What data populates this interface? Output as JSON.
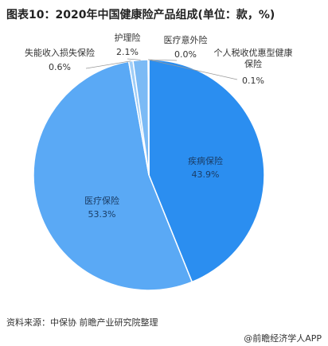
{
  "chart_data": {
    "type": "pie",
    "title": "图表10：2020年中国健康险产品组成(单位：款，%)",
    "categories": [
      "疾病保险",
      "医疗保险",
      "失能收入损失保险",
      "护理险",
      "医疗意外险",
      "个人税收优惠型健康保险"
    ],
    "values": [
      43.9,
      53.3,
      0.6,
      2.1,
      0.0,
      0.1
    ],
    "value_labels": [
      "43.9%",
      "53.3%",
      "0.6%",
      "2.1%",
      "0.0%",
      "0.1%"
    ],
    "colors": [
      "#2b8ef0",
      "#5aa9f5",
      "#9fcdf7",
      "#7bbaf5",
      "#cfe5fb",
      "#e6f2fd"
    ],
    "source": "资料来源：中保协 前瞻产业研究院整理",
    "credit": "@前瞻经济学人APP"
  }
}
